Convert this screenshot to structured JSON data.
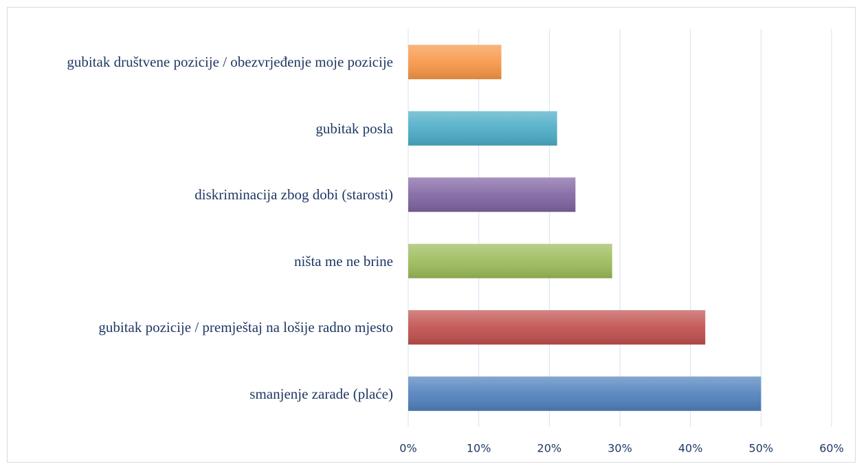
{
  "chart_data": {
    "type": "bar",
    "orientation": "horizontal",
    "categories": [
      "gubitak društvene pozicije / obezvrjeđenje moje pozicije",
      "gubitak posla",
      "diskriminacija zbog dobi (starosti)",
      "ništa me ne brine",
      "gubitak pozicije / premještaj na lošije radno mjesto",
      "smanjenje zarade (plaće)"
    ],
    "values": [
      13.2,
      21.1,
      23.7,
      28.9,
      42.1,
      50
    ],
    "colors": [
      "#f79646",
      "#4bacc6",
      "#8064a2",
      "#9bbb59",
      "#c0504d",
      "#4f81bd"
    ],
    "xlim": [
      0,
      60
    ],
    "xticks": [
      {
        "value": 0,
        "label": "0%"
      },
      {
        "value": 10,
        "label": "10%"
      },
      {
        "value": 20,
        "label": "20%"
      },
      {
        "value": 30,
        "label": "30%"
      },
      {
        "value": 40,
        "label": "40%"
      },
      {
        "value": 50,
        "label": "50%"
      },
      {
        "value": 60,
        "label": "60%"
      }
    ],
    "grid": true
  }
}
